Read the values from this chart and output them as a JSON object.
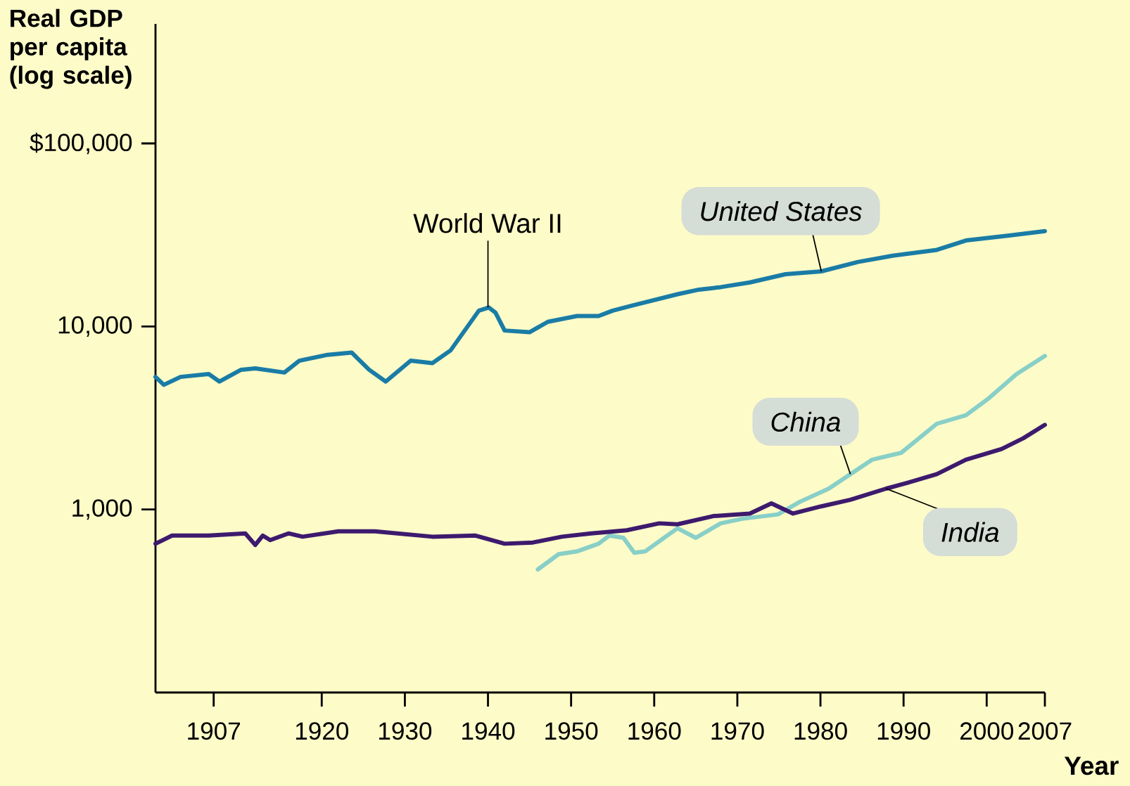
{
  "chart_data": {
    "type": "line",
    "ylabel": "Real GDP per capita (log scale)",
    "xlabel": "Year",
    "log": "y",
    "xlim": [
      1900,
      2007
    ],
    "ylim": [
      100,
      450000
    ],
    "xticks": [
      1907,
      1920,
      1930,
      1940,
      1950,
      1960,
      1970,
      1980,
      1990,
      2000,
      2007
    ],
    "yticks": [
      {
        "value": 1000,
        "label": "1,000"
      },
      {
        "value": 10000,
        "label": "10,000"
      },
      {
        "value": 100000,
        "label": "$100,000"
      }
    ],
    "annotations": [
      {
        "text": "World War II",
        "x": 1940,
        "y": 12700
      }
    ],
    "series": [
      {
        "name": "United States",
        "color": "#1a7ca6",
        "x": [
          1900,
          1901,
          1903,
          1906.4,
          1907.7,
          1910.3,
          1912,
          1915.5,
          1917.3,
          1920.7,
          1923.6,
          1925.7,
          1927.7,
          1930.7,
          1933.3,
          1935.5,
          1938.9,
          1940.1,
          1940.9,
          1942,
          1945,
          1947.2,
          1950.7,
          1953.3,
          1955,
          1957.6,
          1962.8,
          1965.4,
          1968,
          1971.5,
          1975.8,
          1980.1,
          1984.5,
          1988.8,
          1994,
          1997.5,
          2002.7,
          2007
        ],
        "values": [
          5300,
          4800,
          5300,
          5500,
          5000,
          5800,
          5900,
          5600,
          6500,
          7000,
          7200,
          5800,
          5000,
          6500,
          6300,
          7400,
          12200,
          12700,
          11900,
          9500,
          9300,
          10600,
          11400,
          11400,
          12200,
          13100,
          15000,
          15900,
          16400,
          17400,
          19300,
          20000,
          22500,
          24400,
          26200,
          29500,
          31400,
          33200
        ]
      },
      {
        "name": "China",
        "color": "#88cfc8",
        "x": [
          1946,
          1948.5,
          1950.7,
          1953.3,
          1954.6,
          1956.3,
          1957.6,
          1958.9,
          1962.8,
          1965,
          1968,
          1970.6,
          1973.2,
          1974.9,
          1977.5,
          1981,
          1983.6,
          1986.2,
          1989.7,
          1994,
          1997.5,
          2000.1,
          2003.6,
          2007
        ],
        "values": [
          470,
          570,
          590,
          650,
          720,
          700,
          580,
          590,
          790,
          700,
          840,
          890,
          920,
          940,
          1100,
          1300,
          1560,
          1870,
          2040,
          2940,
          3270,
          4000,
          5500,
          6900
        ]
      },
      {
        "name": "India",
        "color": "#3d1a6e",
        "x": [
          1900,
          1902,
          1906.4,
          1910.8,
          1912,
          1912.9,
          1913.8,
          1916,
          1917.7,
          1922,
          1926.4,
          1933.3,
          1938.5,
          1942,
          1945.4,
          1948.9,
          1952.4,
          1956.7,
          1960.6,
          1962.8,
          1967.1,
          1971.5,
          1974.1,
          1976.7,
          1980.1,
          1983.6,
          1987.9,
          1990.5,
          1994,
          1997.5,
          2001.8,
          2004.4,
          2007
        ],
        "values": [
          650,
          720,
          720,
          740,
          640,
          720,
          680,
          740,
          710,
          760,
          760,
          710,
          720,
          650,
          660,
          710,
          740,
          770,
          840,
          830,
          920,
          950,
          1080,
          950,
          1040,
          1130,
          1300,
          1400,
          1560,
          1870,
          2140,
          2450,
          2900
        ]
      }
    ]
  }
}
